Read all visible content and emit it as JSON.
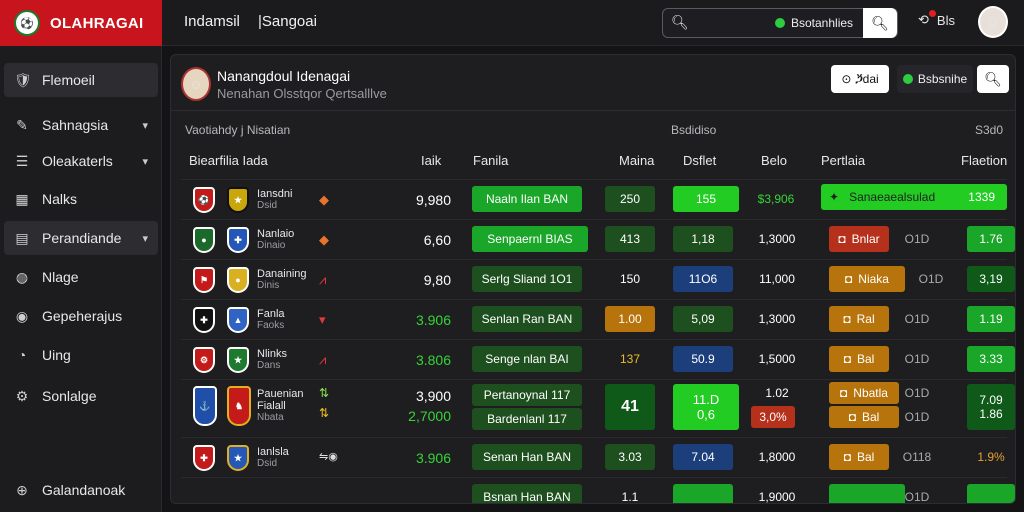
{
  "header": {
    "brand": "OLAHRAGAI",
    "nav": [
      "Indamsil",
      "|Sangoai"
    ],
    "search_status": "Bsotanhlies",
    "notif_label": "Bls"
  },
  "sidebar": {
    "items": [
      {
        "label": "Flemoeil",
        "icon": "club-logo-icon",
        "active": true,
        "chevron": false
      },
      {
        "label": "Sahnagsia",
        "icon": "pen-icon",
        "active": false,
        "chevron": true
      },
      {
        "label": "Oleakaterls",
        "icon": "list-icon",
        "active": false,
        "chevron": true
      },
      {
        "label": "Nalks",
        "icon": "grid-icon",
        "active": false,
        "chevron": false
      },
      {
        "label": "Perandiande",
        "icon": "clipboard-icon",
        "active": true,
        "chevron": true
      },
      {
        "label": "Nlage",
        "icon": "globe-icon",
        "active": false,
        "chevron": false
      },
      {
        "label": "Gepeherajus",
        "icon": "users-icon",
        "active": false,
        "chevron": false
      },
      {
        "label": "Uing",
        "icon": "gauge-icon",
        "active": false,
        "chevron": false
      },
      {
        "label": "Sonlalge",
        "icon": "settings-icon",
        "active": false,
        "chevron": false
      },
      {
        "label": "Galandanoak",
        "icon": "plus-circle-icon",
        "active": false,
        "chevron": false
      }
    ]
  },
  "panel": {
    "title": "Nanangdoul Idenagai",
    "subtitle": "Nenahan Olsstqor Qertsalllve",
    "btn_live": "⊙ ⷛdai",
    "btn_status": "Bsbsnihe",
    "section_left": "Vaotiahdy j Nisatian",
    "section_mid": "Bsdidiso",
    "section_right": "S3d0",
    "columns": [
      "Biearfilia Iada",
      "Iaik",
      "Fanila",
      "Maina",
      "Dsflet",
      "Belo",
      "Pertlaia",
      "Flaetion"
    ]
  },
  "rows": [
    {
      "t1": "Iansdni",
      "t1b": "Dsid",
      "num": "9,980",
      "pill": "Naaln Ilan BAN",
      "a": "250",
      "b": "155",
      "c": "$3,906",
      "tag": "Sanaeaealsulad",
      "last": "1339",
      "highlight": true
    },
    {
      "t1": "Nanlaio",
      "t1b": "Dinaio",
      "num": "6,60",
      "pill": "Senpaernl BIAS",
      "a": "413",
      "b": "1,18",
      "c": "1,3000",
      "tag": "Bnlar",
      "mid": "O1D",
      "last": "1.76"
    },
    {
      "t1": "Danaining",
      "t1b": "Dinis",
      "num": "9,80",
      "pill": "Serlg Sliand 1O1",
      "a": "150",
      "b": "11O6",
      "c": "11,000",
      "tag": "Niaka",
      "mid": "O1D",
      "last": "3,19"
    },
    {
      "t1": "Fanla",
      "t1b": "Faoks",
      "num": "3.906",
      "pill": "Senlan Ran BAN",
      "a": "1.00",
      "b": "5,09",
      "c": "1,3000",
      "tag": "Ral",
      "mid": "O1D",
      "last": "1.19"
    },
    {
      "t1": "Nlinks",
      "t1b": "Dans",
      "num": "3.806",
      "pill": "Senge nlan BAI",
      "a": "137",
      "b": "50.9",
      "c": "1,5000",
      "tag": "Bal",
      "mid": "O1D",
      "last": "3.33"
    },
    {
      "t1": "Pauenian",
      "t1b": "Fialall",
      "t1c": "Nbata",
      "num": "3,900",
      "num2": "2,7000",
      "pill": "Pertanoynal 117",
      "pill2": "Bardenlanl 117",
      "a": "41",
      "b": "11.D",
      "b2": "0,6",
      "c": "1.02",
      "c2": "3,0%",
      "tag": "Nbatla",
      "tag2": "Bal",
      "mid": "O1D",
      "mid2": "O1D",
      "last": "7.09",
      "last2": "1.86"
    },
    {
      "t1": "Ianlsla",
      "t1b": "Dsid",
      "num": "3.906",
      "pill": "Senan Han BAN",
      "a": "3.03",
      "b": "7.04",
      "c": "1,8000",
      "tag": "Bal",
      "mid": "O118",
      "last": "1.9%"
    },
    {
      "t1": "",
      "t1b": "",
      "num": "",
      "pill": "Bsnan Han BAN",
      "a": "1.1",
      "b": "",
      "c": "1,9000",
      "tag": "",
      "mid": "O1D",
      "last": ""
    }
  ]
}
